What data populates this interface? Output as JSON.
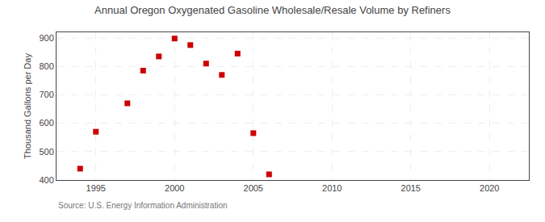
{
  "chart_data": {
    "type": "scatter",
    "title": "Annual Oregon Oxygenated Gasoline Wholesale/Resale Volume by Refiners",
    "ylabel": "Thousand Gallons per Day",
    "annotation": "Source: U.S. Energy Information Administration",
    "x": [
      1994,
      1995,
      1997,
      1998,
      1999,
      2000,
      2001,
      2002,
      2003,
      2004,
      2005,
      2006
    ],
    "values": [
      440,
      570,
      670,
      785,
      835,
      898,
      875,
      810,
      770,
      845,
      565,
      420
    ],
    "color": "#cc0000",
    "marker": "square",
    "xlim": [
      1992.5,
      2022.5
    ],
    "ylim": [
      400,
      920
    ],
    "xticks": [
      1995,
      2000,
      2005,
      2010,
      2015,
      2020
    ],
    "yticks": [
      400,
      500,
      600,
      700,
      800,
      900
    ],
    "grid": true
  }
}
